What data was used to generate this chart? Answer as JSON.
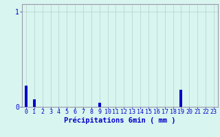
{
  "categories": [
    0,
    1,
    2,
    3,
    4,
    5,
    6,
    7,
    8,
    9,
    10,
    11,
    12,
    13,
    14,
    15,
    16,
    17,
    18,
    19,
    20,
    21,
    22,
    23
  ],
  "values": [
    0.22,
    0.08,
    0,
    0,
    0,
    0,
    0,
    0,
    0,
    0.04,
    0,
    0,
    0,
    0,
    0,
    0,
    0,
    0,
    0,
    0.18,
    0,
    0,
    0,
    0
  ],
  "bar_color": "#0000cc",
  "background_color": "#d8f5ef",
  "grid_color": "#b8d0cc",
  "axis_color": "#9999aa",
  "text_color": "#0000cc",
  "xlabel": "Précipitations 6min ( mm )",
  "ylim": [
    0,
    1.08
  ],
  "yticks": [
    0,
    1
  ],
  "xlabel_fontsize": 7.5,
  "tick_fontsize": 6.0
}
